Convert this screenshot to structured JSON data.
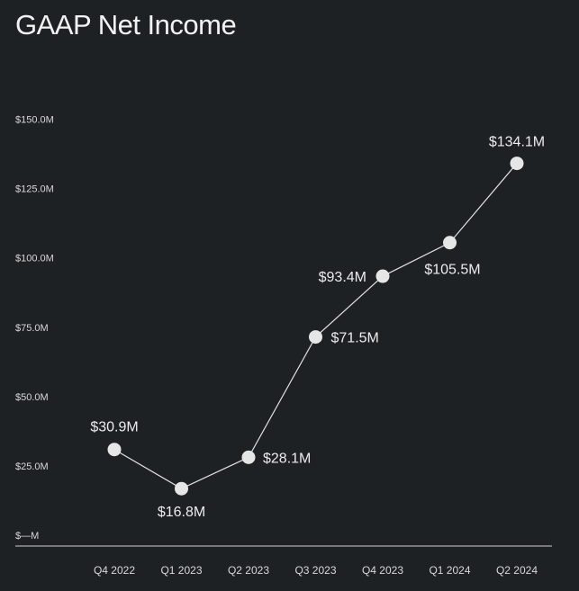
{
  "chart_data": {
    "type": "line",
    "title": "GAAP Net Income",
    "categories": [
      "Q4 2022",
      "Q1 2023",
      "Q2 2023",
      "Q3 2023",
      "Q4 2023",
      "Q1 2024",
      "Q2 2024"
    ],
    "series": [
      {
        "values": [
          30.9,
          16.8,
          28.1,
          71.5,
          93.4,
          105.5,
          134.1
        ]
      }
    ],
    "data_labels": [
      "$30.9M",
      "$16.8M",
      "$28.1M",
      "$71.5M",
      "$93.4M",
      "$105.5M",
      "$134.1M"
    ],
    "y_ticks": [
      {
        "value": 0,
        "label": "$—M"
      },
      {
        "value": 25,
        "label": "$25.0M"
      },
      {
        "value": 50,
        "label": "$50.0M"
      },
      {
        "value": 75,
        "label": "$75.0M"
      },
      {
        "value": 100,
        "label": "$100.0M"
      },
      {
        "value": 125,
        "label": "$125.0M"
      },
      {
        "value": 150,
        "label": "$150.0M"
      }
    ],
    "ylim": [
      0,
      150
    ],
    "grid": false,
    "colors": {
      "background": "#1e2124",
      "line": "#e0e0e0",
      "marker": "#e6e6e6",
      "text": "#e8e8e8"
    }
  }
}
